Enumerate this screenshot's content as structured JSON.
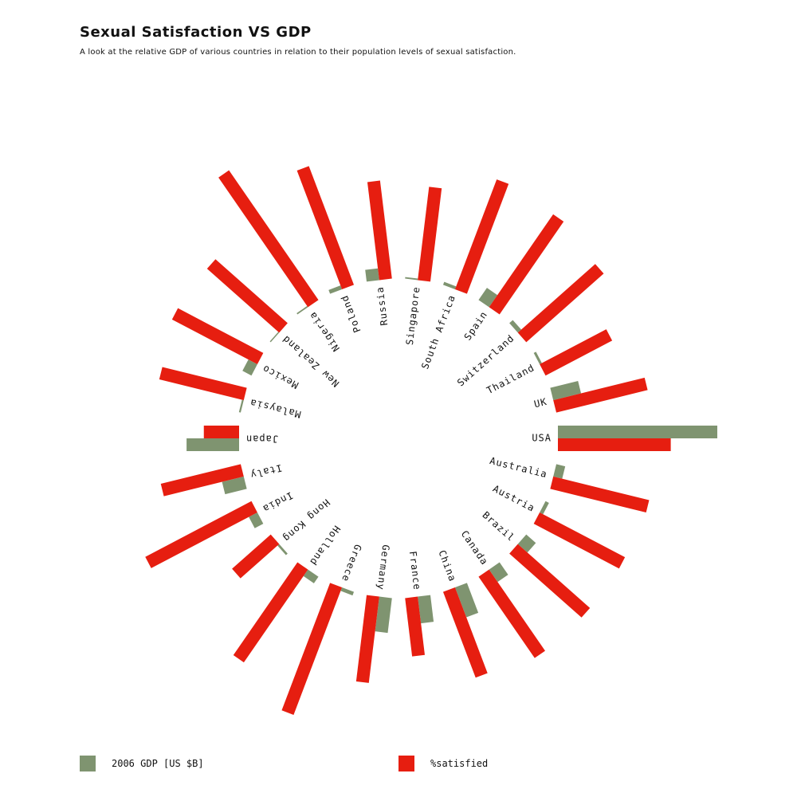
{
  "title": "Sexual Satisfaction VS GDP",
  "subtitle": "A look at the relative GDP of various countries in relation to their population levels of sexual satisfaction.",
  "colors": {
    "gdp": "#7f9470",
    "satisfied": "#e61e10"
  },
  "legend": {
    "gdp_label": "2006 GDP [US $B]",
    "satisfied_label": "%satisfied"
  },
  "chart_data": {
    "type": "bar",
    "subtype": "radial",
    "categories": [
      "USA",
      "Australia",
      "Austria",
      "Brazil",
      "Canada",
      "China",
      "France",
      "Germany",
      "Greece",
      "Holland",
      "Hong Kong",
      "India",
      "Italy",
      "Japan",
      "Malaysia",
      "Mexico",
      "New Zealand",
      "Nigeria",
      "Poland",
      "Russia",
      "Singapore",
      "South Africa",
      "Spain",
      "Switzerland",
      "Thailand",
      "UK"
    ],
    "series": [
      {
        "name": "2006 GDP [US $B]",
        "values": [
          13200,
          760,
          320,
          1060,
          1250,
          2650,
          2230,
          2900,
          310,
          660,
          190,
          800,
          1850,
          4350,
          150,
          840,
          100,
          120,
          340,
          980,
          130,
          260,
          1220,
          380,
          210,
          2370
        ]
      },
      {
        "name": "%satisfied",
        "values": [
          48,
          42,
          41,
          41,
          42,
          39,
          25,
          37,
          58,
          48,
          22,
          51,
          35,
          15,
          37,
          41,
          41,
          67,
          54,
          42,
          40,
          50,
          48,
          44,
          32,
          40
        ]
      }
    ]
  }
}
